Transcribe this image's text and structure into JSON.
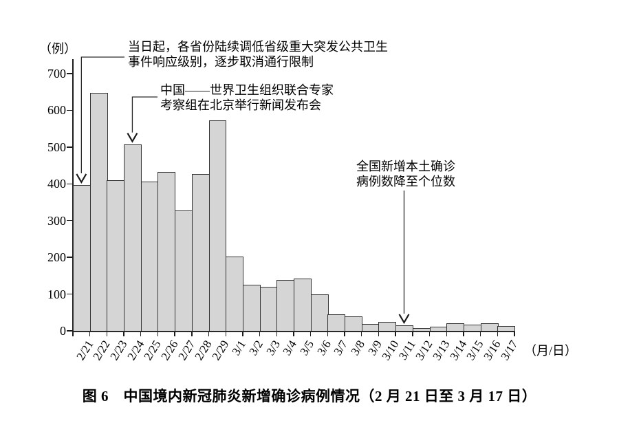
{
  "figure": {
    "y_axis_unit": "（例）",
    "x_axis_unit": "（月/日）",
    "caption": "图 6　中国境内新冠肺炎新增确诊病例情况（2 月 21 日至 3 月 17 日）"
  },
  "chart_data": {
    "type": "bar",
    "title": "中国境内新冠肺炎新增确诊病例情况（2月21日至3月17日）",
    "ylabel": "（例）",
    "xlabel": "（月/日）",
    "ylim": [
      0,
      700
    ],
    "yticks": [
      0,
      100,
      200,
      300,
      400,
      500,
      600,
      700
    ],
    "grid": false,
    "legend": "none",
    "bar_fill_color": "#d5d5d5",
    "bar_border_color": "#333333",
    "categories": [
      "2/21",
      "2/22",
      "2/23",
      "2/24",
      "2/25",
      "2/26",
      "2/27",
      "2/28",
      "2/29",
      "3/1",
      "3/2",
      "3/3",
      "3/4",
      "3/5",
      "3/6",
      "3/7",
      "3/8",
      "3/9",
      "3/10",
      "3/11",
      "3/12",
      "3/13",
      "3/14",
      "3/15",
      "3/16",
      "3/17"
    ],
    "values": [
      397,
      648,
      409,
      508,
      406,
      433,
      327,
      427,
      573,
      202,
      125,
      119,
      139,
      143,
      99,
      44,
      40,
      19,
      24,
      15,
      8,
      11,
      20,
      16,
      21,
      13
    ],
    "annotations": [
      {
        "lines": [
          "当日起，各省份陆续调低省级重大突发公共卫生",
          "事件响应级别，逐步取消通行限制"
        ],
        "target_category": "2/21"
      },
      {
        "lines": [
          "中国——世界卫生组织联合专家",
          "考察组在北京举行新闻发布会"
        ],
        "target_category": "2/24"
      },
      {
        "lines": [
          "全国新增本土确诊",
          "病例数降至个位数"
        ],
        "target_category": "3/11"
      }
    ]
  }
}
